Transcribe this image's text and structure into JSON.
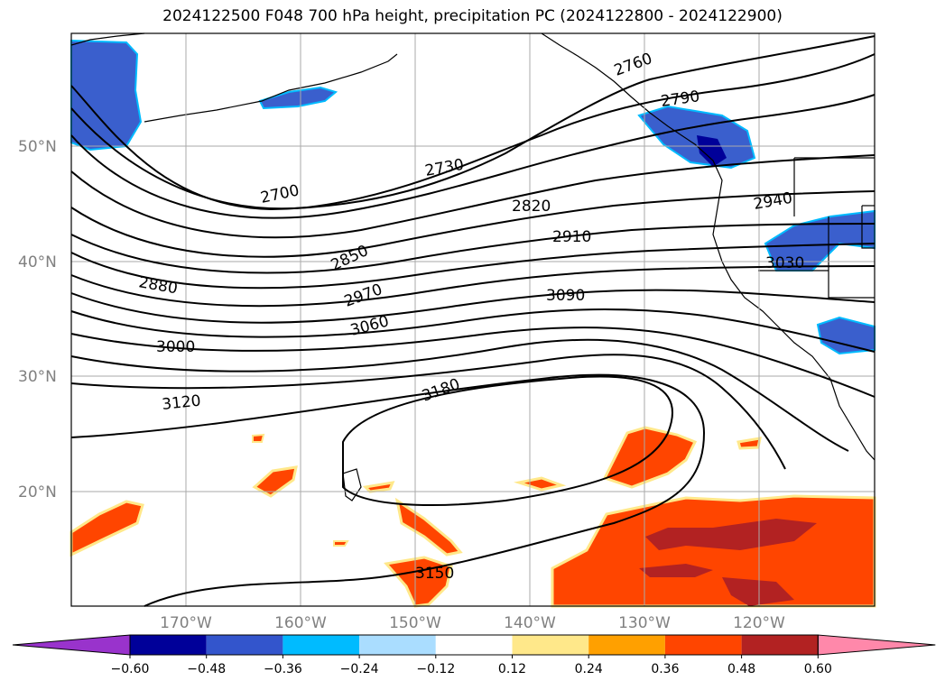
{
  "title": "2024122500 F048 700 hPa height, precipitation PC (2024122800 - 2024122900)",
  "lat_labels": [
    "50°N",
    "40°N",
    "30°N",
    "20°N"
  ],
  "lon_labels": [
    "170°W",
    "160°W",
    "150°W",
    "140°W",
    "130°W",
    "120°W"
  ],
  "contour_labels": [
    "2700",
    "2730",
    "2760",
    "2790",
    "2820",
    "2850",
    "2880",
    "2910",
    "2940",
    "2970",
    "3000",
    "3030",
    "3060",
    "3090",
    "3120",
    "3150",
    "3180"
  ],
  "colorbar": {
    "ticks": [
      "−0.60",
      "−0.48",
      "−0.36",
      "−0.24",
      "−0.12",
      "0.12",
      "0.24",
      "0.36",
      "0.48",
      "0.60"
    ],
    "colors": [
      "#9933cc",
      "#000099",
      "#3355cc",
      "#00bbff",
      "#aaddff",
      "#ffffff",
      "#ffe88a",
      "#ffa000",
      "#ff4500",
      "#b22222",
      "#ff88aa"
    ]
  },
  "colors": {
    "neg_fill": "#3a5fcd",
    "neg_dark": "#000099",
    "neg_edge": "#00bbff",
    "pos_fill": "#ff4500",
    "pos_dark": "#b22222",
    "pos_edge": "#ffa000",
    "pos_halo": "#ffe88a",
    "grid": "#aaaaaa"
  }
}
